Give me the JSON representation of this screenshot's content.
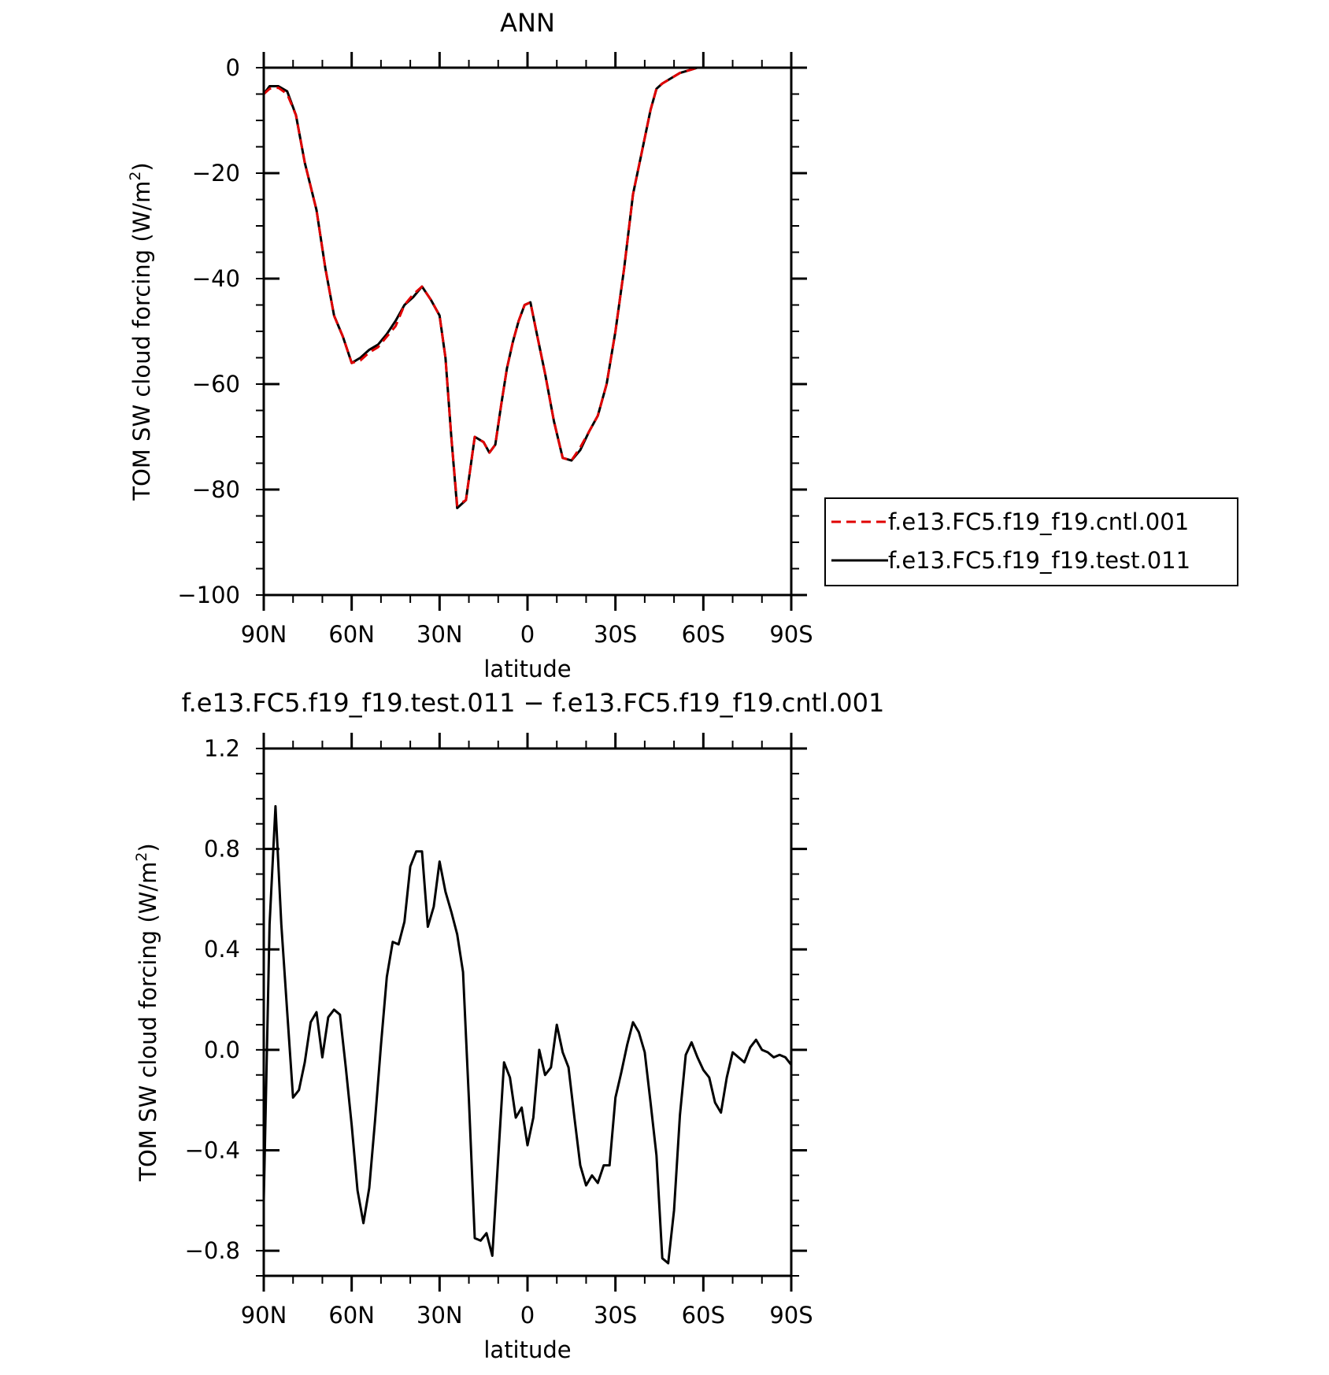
{
  "chart_data": [
    {
      "type": "line",
      "title": "ANN",
      "xlabel": "latitude",
      "ylabel": "TOM SW cloud forcing (W/m²)",
      "ylabel_main": "TOM SW cloud forcing (W/m",
      "ylabel_sup": "2",
      "ylabel_close": ")",
      "x_ticks": [
        -90,
        -60,
        -30,
        0,
        30,
        60,
        90
      ],
      "x_tick_labels": [
        "90N",
        "60N",
        "30N",
        "0",
        "30S",
        "60S",
        "90S"
      ],
      "y_ticks": [
        0,
        -20,
        -40,
        -60,
        -80,
        -100
      ],
      "y_tick_labels": [
        "0",
        "−20",
        "−40",
        "−60",
        "−80",
        "−100"
      ],
      "xlim": [
        -90,
        90
      ],
      "ylim": [
        -100,
        0
      ],
      "legend_position": "right",
      "x": [
        -90,
        -88,
        -85,
        -82,
        -79,
        -76,
        -72,
        -69,
        -66,
        -63,
        -60,
        -57,
        -54,
        -51,
        -48,
        -45,
        -42,
        -39,
        -36,
        -33,
        -30,
        -28,
        -26,
        -24,
        -21,
        -18,
        -15,
        -13,
        -11,
        -9,
        -7,
        -5,
        -3,
        -1,
        1,
        3,
        6,
        9,
        12,
        15,
        18,
        21,
        24,
        27,
        30,
        33,
        36,
        39,
        42,
        44,
        46,
        49,
        52,
        55,
        58,
        61,
        64,
        66,
        68,
        70,
        72,
        75,
        80,
        85,
        90
      ],
      "series": [
        {
          "name": "f.e13.FC5.f19_f19.cntl.001",
          "color": "#e00000",
          "dash": "dashed",
          "values": [
            -5,
            -4,
            -3.8,
            -5,
            -9,
            -18,
            -27,
            -38,
            -47,
            -51,
            -56,
            -55.5,
            -54,
            -53,
            -51,
            -49,
            -45,
            -43,
            -41.5,
            -44,
            -47,
            -55,
            -70,
            -83,
            -82,
            -70,
            -71,
            -73,
            -71.5,
            -64,
            -57,
            -52,
            -48,
            -45,
            -44.5,
            -50,
            -58,
            -67,
            -74,
            -74.5,
            -72,
            -69,
            -66,
            -60,
            -50,
            -38,
            -24,
            -16,
            -8,
            -4,
            -3,
            -2,
            -1,
            -0.5,
            0,
            0,
            0,
            0,
            0,
            0,
            0,
            0,
            0,
            0,
            0
          ]
        },
        {
          "name": "f.e13.FC5.f19_f19.test.011",
          "color": "#000000",
          "dash": "solid",
          "values": [
            -5,
            -3.5,
            -3.5,
            -4.5,
            -9,
            -18,
            -27,
            -38,
            -47,
            -51,
            -56,
            -55,
            -53.5,
            -52.5,
            -50.5,
            -48,
            -45,
            -43.5,
            -41.5,
            -44,
            -47,
            -55,
            -70,
            -83.5,
            -82,
            -70,
            -71,
            -73,
            -71.5,
            -64,
            -57,
            -52,
            -48,
            -45,
            -44.5,
            -50,
            -58,
            -67,
            -74,
            -74.5,
            -72.5,
            -69,
            -66,
            -60,
            -50,
            -38,
            -24,
            -16,
            -8,
            -4,
            -3,
            -2,
            -1,
            -0.5,
            0,
            0,
            0,
            0,
            0,
            0,
            0,
            0,
            0,
            0,
            0
          ]
        }
      ]
    },
    {
      "type": "line",
      "title": "f.e13.FC5.f19_f19.test.011 − f.e13.FC5.f19_f19.cntl.001",
      "xlabel": "latitude",
      "ylabel": "TOM SW cloud forcing (W/m²)",
      "ylabel_main": "TOM SW cloud forcing (W/m",
      "ylabel_sup": "2",
      "ylabel_close": ")",
      "x_ticks": [
        -90,
        -60,
        -30,
        0,
        30,
        60,
        90
      ],
      "x_tick_labels": [
        "90N",
        "60N",
        "30N",
        "0",
        "30S",
        "60S",
        "90S"
      ],
      "y_ticks": [
        1.2,
        0.8,
        0.4,
        0.0,
        -0.4,
        -0.8
      ],
      "y_tick_labels": [
        "1.2",
        "0.8",
        "0.4",
        "0.0",
        "−0.4",
        "−0.8"
      ],
      "xlim": [
        -90,
        90
      ],
      "ylim": [
        -0.9,
        1.2
      ],
      "x": [
        -90,
        -88,
        -86,
        -84,
        -82,
        -80,
        -78,
        -76,
        -74,
        -72,
        -70,
        -68,
        -66,
        -64,
        -62,
        -60,
        -58,
        -56,
        -54,
        -52,
        -50,
        -48,
        -46,
        -44,
        -42,
        -40,
        -38,
        -36,
        -34,
        -32,
        -30,
        -28,
        -26,
        -24,
        -22,
        -20,
        -18,
        -16,
        -14,
        -12,
        -10,
        -8,
        -6,
        -4,
        -2,
        0,
        2,
        4,
        6,
        8,
        10,
        12,
        14,
        16,
        18,
        20,
        22,
        24,
        26,
        28,
        30,
        32,
        34,
        36,
        38,
        40,
        42,
        44,
        46,
        48,
        50,
        52,
        54,
        56,
        58,
        60,
        62,
        64,
        66,
        68,
        70,
        72,
        74,
        76,
        78,
        80,
        82,
        84,
        86,
        88,
        90
      ],
      "series": [
        {
          "name": "",
          "color": "#000000",
          "dash": "solid",
          "values": [
            -0.6,
            0.5,
            0.97,
            0.5,
            0.15,
            -0.19,
            -0.16,
            -0.05,
            0.11,
            0.15,
            -0.03,
            0.13,
            0.16,
            0.14,
            -0.07,
            -0.3,
            -0.56,
            -0.69,
            -0.55,
            -0.28,
            0.02,
            0.29,
            0.43,
            0.42,
            0.51,
            0.73,
            0.79,
            0.79,
            0.49,
            0.57,
            0.75,
            0.63,
            0.55,
            0.46,
            0.31,
            -0.2,
            -0.75,
            -0.76,
            -0.73,
            -0.82,
            -0.43,
            -0.05,
            -0.11,
            -0.27,
            -0.23,
            -0.38,
            -0.27,
            0.0,
            -0.1,
            -0.07,
            0.1,
            -0.01,
            -0.07,
            -0.27,
            -0.46,
            -0.54,
            -0.5,
            -0.53,
            -0.46,
            -0.46,
            -0.19,
            -0.09,
            0.02,
            0.11,
            0.07,
            -0.01,
            -0.21,
            -0.42,
            -0.83,
            -0.85,
            -0.64,
            -0.26,
            -0.02,
            0.03,
            -0.03,
            -0.08,
            -0.11,
            -0.21,
            -0.25,
            -0.11,
            -0.01,
            -0.03,
            -0.05,
            0.01,
            0.04,
            0.0,
            -0.01,
            -0.03,
            -0.02,
            -0.03,
            -0.06
          ]
        }
      ]
    }
  ]
}
